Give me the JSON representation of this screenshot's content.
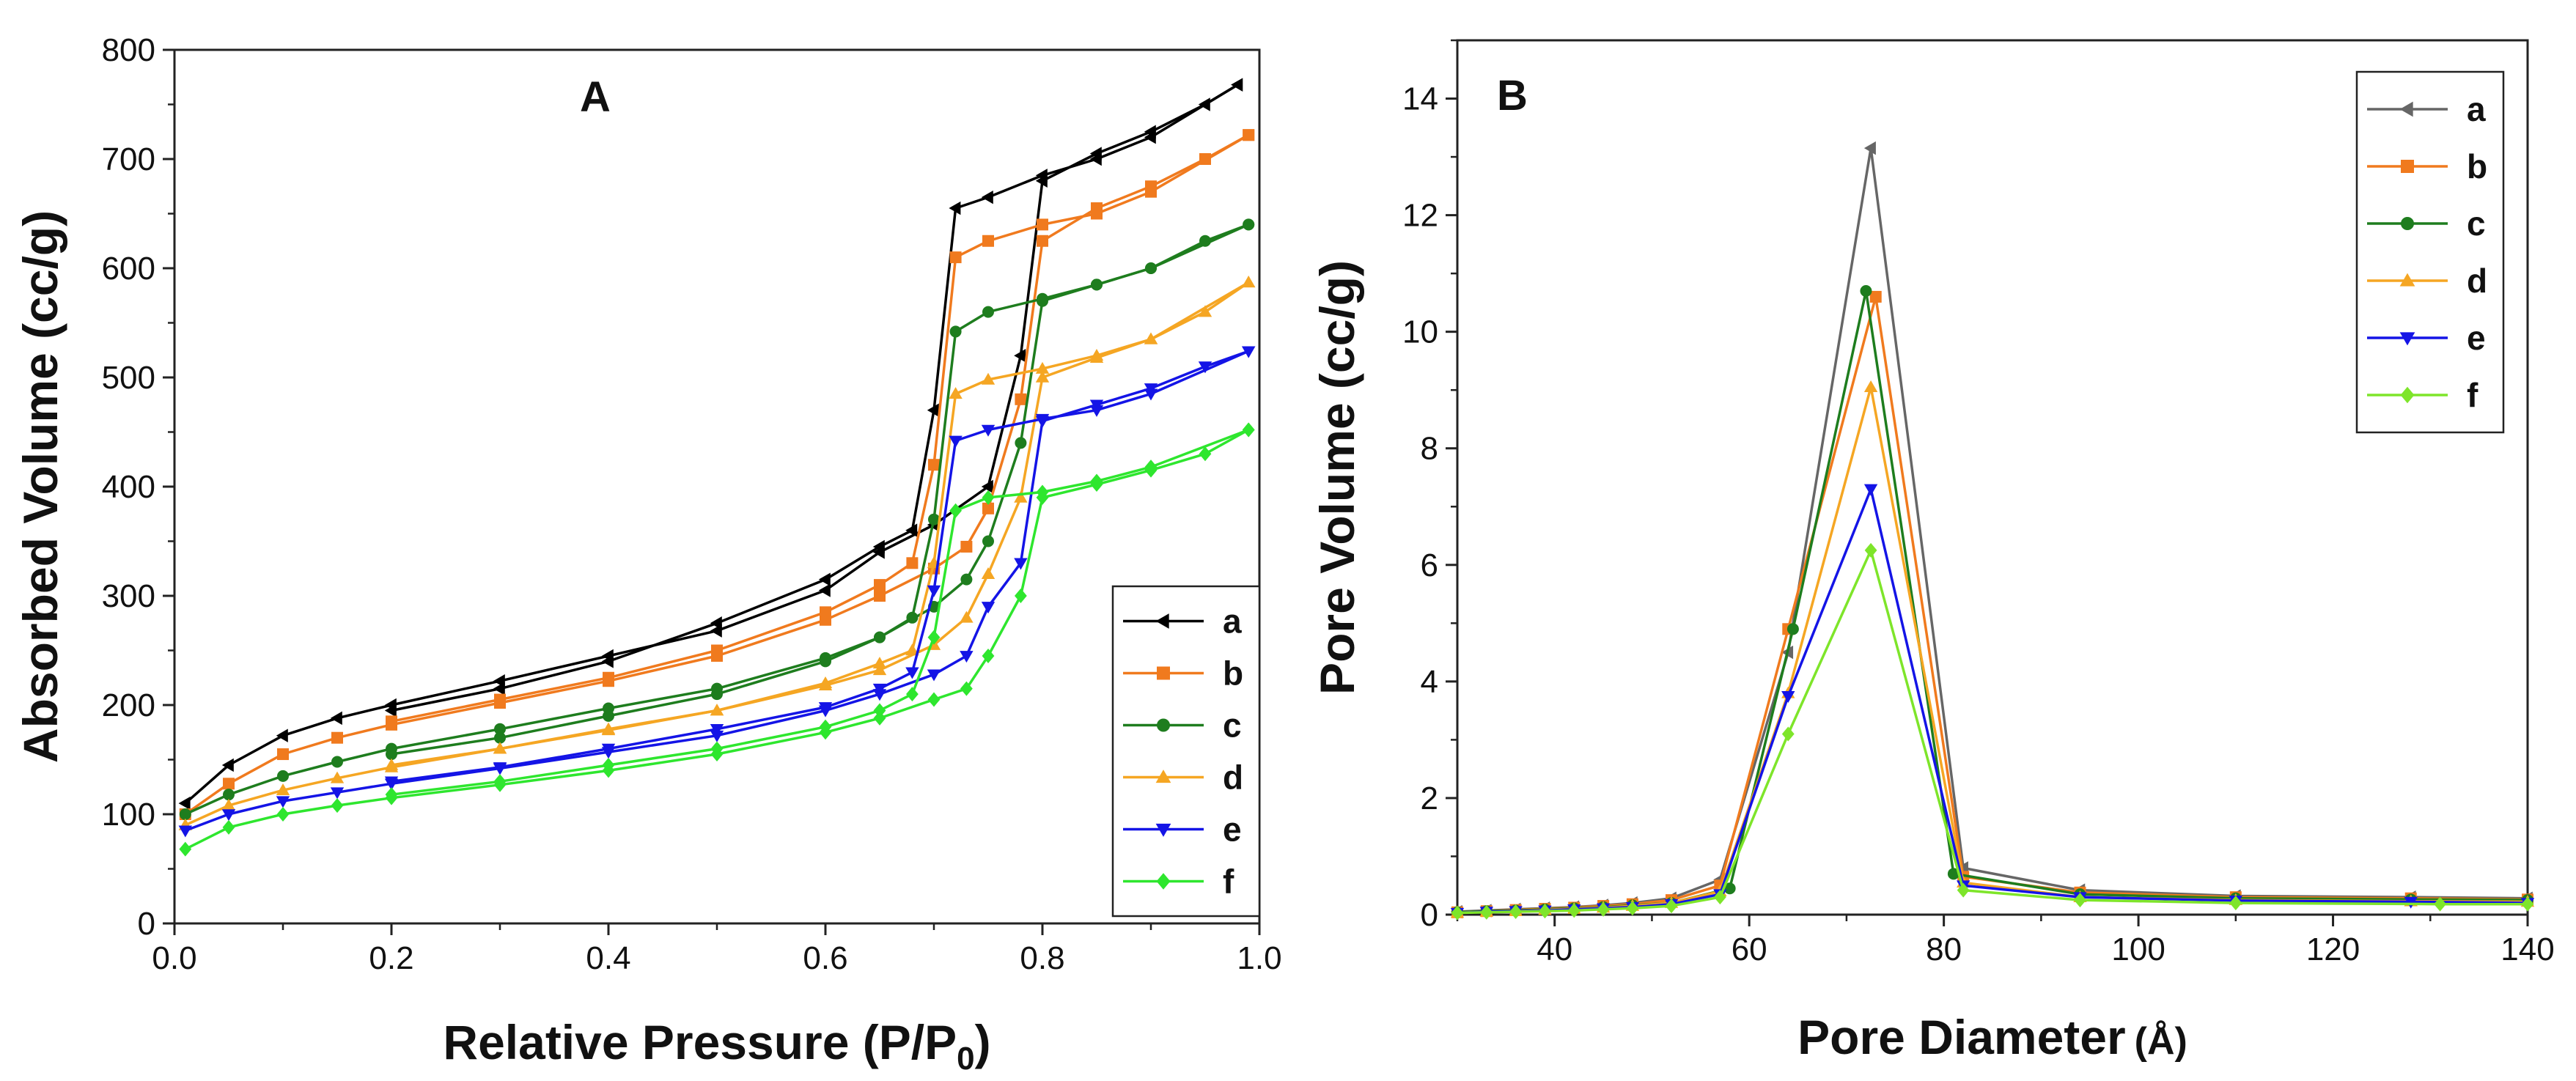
{
  "chart_data": [
    {
      "type": "line",
      "panel_label": "A",
      "xlabel": "Relative Pressure (P/P",
      "xlabel_sub": "0",
      "xlabel_end": ")",
      "ylabel": "Absorbed Volume (cc/g)",
      "xlim": [
        0.0,
        1.0
      ],
      "ylim": [
        0,
        800
      ],
      "xticks": [
        0.0,
        0.2,
        0.4,
        0.6,
        0.8,
        1.0
      ],
      "xtick_labels": [
        "0.0",
        "0.2",
        "0.4",
        "0.6",
        "0.8",
        "1.0"
      ],
      "yticks": [
        0,
        100,
        200,
        300,
        400,
        500,
        600,
        700,
        800
      ],
      "ytick_labels": [
        "0",
        "100",
        "200",
        "300",
        "400",
        "500",
        "600",
        "700",
        "800"
      ],
      "legend_position": "bottom-right",
      "series": [
        {
          "name": "a",
          "color": "#000000",
          "marker": "triangle-left",
          "adsorption": {
            "x": [
              0.01,
              0.05,
              0.1,
              0.15,
              0.2,
              0.3,
              0.4,
              0.5,
              0.6,
              0.65,
              0.7,
              0.75,
              0.78,
              0.8,
              0.85,
              0.9,
              0.95,
              0.98
            ],
            "y": [
              110,
              145,
              172,
              188,
              200,
              222,
              245,
              268,
              305,
              340,
              365,
              400,
              520,
              680,
              705,
              725,
              750,
              768
            ]
          },
          "desorption": {
            "x": [
              0.98,
              0.9,
              0.85,
              0.8,
              0.75,
              0.72,
              0.7,
              0.68,
              0.65,
              0.6,
              0.5,
              0.4,
              0.3,
              0.2
            ],
            "y": [
              768,
              720,
              700,
              685,
              665,
              655,
              470,
              360,
              345,
              315,
              275,
              240,
              215,
              195
            ]
          }
        },
        {
          "name": "b",
          "color": "#f07a1e",
          "marker": "square",
          "adsorption": {
            "x": [
              0.01,
              0.05,
              0.1,
              0.15,
              0.2,
              0.3,
              0.4,
              0.5,
              0.6,
              0.65,
              0.7,
              0.73,
              0.75,
              0.78,
              0.8,
              0.85,
              0.9,
              0.95,
              0.99
            ],
            "y": [
              100,
              128,
              155,
              170,
              182,
              202,
              222,
              245,
              278,
              300,
              325,
              345,
              380,
              480,
              625,
              655,
              675,
              700,
              722
            ]
          },
          "desorption": {
            "x": [
              0.99,
              0.9,
              0.85,
              0.8,
              0.75,
              0.72,
              0.7,
              0.68,
              0.65,
              0.6,
              0.5,
              0.4,
              0.3,
              0.2
            ],
            "y": [
              722,
              670,
              650,
              640,
              625,
              610,
              420,
              330,
              310,
              285,
              250,
              225,
              205,
              185
            ]
          }
        },
        {
          "name": "c",
          "color": "#1e7d1e",
          "marker": "circle",
          "adsorption": {
            "x": [
              0.01,
              0.05,
              0.1,
              0.15,
              0.2,
              0.3,
              0.4,
              0.5,
              0.6,
              0.65,
              0.7,
              0.73,
              0.75,
              0.78,
              0.8,
              0.85,
              0.9,
              0.95,
              0.99
            ],
            "y": [
              100,
              118,
              135,
              148,
              160,
              178,
              197,
              215,
              243,
              262,
              290,
              315,
              350,
              440,
              570,
              585,
              600,
              625,
              640
            ]
          },
          "desorption": {
            "x": [
              0.99,
              0.9,
              0.85,
              0.8,
              0.75,
              0.72,
              0.7,
              0.68,
              0.65,
              0.6,
              0.5,
              0.4,
              0.3,
              0.2
            ],
            "y": [
              640,
              600,
              585,
              572,
              560,
              542,
              370,
              280,
              262,
              240,
              210,
              190,
              170,
              155
            ]
          }
        },
        {
          "name": "d",
          "color": "#f5a623",
          "marker": "triangle-up",
          "adsorption": {
            "x": [
              0.01,
              0.05,
              0.1,
              0.15,
              0.2,
              0.3,
              0.4,
              0.5,
              0.6,
              0.65,
              0.7,
              0.73,
              0.75,
              0.78,
              0.8,
              0.85,
              0.9,
              0.95,
              0.99
            ],
            "y": [
              90,
              108,
              122,
              133,
              143,
              160,
              177,
              195,
              218,
              232,
              255,
              280,
              320,
              390,
              500,
              518,
              535,
              560,
              587
            ]
          },
          "desorption": {
            "x": [
              0.99,
              0.9,
              0.85,
              0.8,
              0.75,
              0.72,
              0.7,
              0.68,
              0.65,
              0.6,
              0.5,
              0.4,
              0.3,
              0.2
            ],
            "y": [
              587,
              535,
              520,
              508,
              498,
              485,
              330,
              250,
              238,
              220,
              195,
              178,
              160,
              145
            ]
          }
        },
        {
          "name": "e",
          "color": "#1414e6",
          "marker": "triangle-down",
          "adsorption": {
            "x": [
              0.01,
              0.05,
              0.1,
              0.15,
              0.2,
              0.3,
              0.4,
              0.5,
              0.6,
              0.65,
              0.7,
              0.73,
              0.75,
              0.78,
              0.8,
              0.85,
              0.9,
              0.95,
              0.99
            ],
            "y": [
              85,
              100,
              112,
              120,
              128,
              142,
              157,
              172,
              195,
              210,
              228,
              245,
              290,
              330,
              460,
              475,
              490,
              510,
              524
            ]
          },
          "desorption": {
            "x": [
              0.99,
              0.9,
              0.85,
              0.8,
              0.75,
              0.72,
              0.7,
              0.68,
              0.65,
              0.6,
              0.5,
              0.4,
              0.3,
              0.2
            ],
            "y": [
              524,
              485,
              470,
              462,
              452,
              442,
              305,
              230,
              215,
              198,
              178,
              160,
              143,
              130
            ]
          }
        },
        {
          "name": "f",
          "color": "#2ee62e",
          "marker": "diamond",
          "adsorption": {
            "x": [
              0.01,
              0.05,
              0.1,
              0.15,
              0.2,
              0.3,
              0.4,
              0.5,
              0.6,
              0.65,
              0.7,
              0.73,
              0.75,
              0.78,
              0.8,
              0.85,
              0.9,
              0.95,
              0.99
            ],
            "y": [
              68,
              88,
              100,
              108,
              115,
              127,
              140,
              155,
              175,
              188,
              205,
              215,
              245,
              300,
              390,
              402,
              415,
              430,
              452
            ]
          },
          "desorption": {
            "x": [
              0.99,
              0.9,
              0.85,
              0.8,
              0.75,
              0.72,
              0.7,
              0.68,
              0.65,
              0.6,
              0.5,
              0.4,
              0.3,
              0.2
            ],
            "y": [
              452,
              418,
              405,
              395,
              390,
              378,
              262,
              210,
              195,
              180,
              160,
              145,
              130,
              118
            ]
          }
        }
      ]
    },
    {
      "type": "line",
      "panel_label": "B",
      "xlabel": "Pore Diameter",
      "xlabel_unit": "(Å)",
      "ylabel": "Pore Volume (cc/g)",
      "xlim": [
        30,
        140
      ],
      "ylim": [
        0,
        15
      ],
      "xticks": [
        40,
        60,
        80,
        100,
        120,
        140
      ],
      "xtick_labels": [
        "40",
        "60",
        "80",
        "100",
        "120",
        "140"
      ],
      "yticks": [
        0,
        2,
        4,
        6,
        8,
        10,
        12,
        14
      ],
      "ytick_labels": [
        "0",
        "2",
        "4",
        "6",
        "8",
        "10",
        "12",
        "14"
      ],
      "legend_position": "top-right",
      "series": [
        {
          "name": "a",
          "color": "#666666",
          "marker": "triangle-left",
          "x": [
            30,
            33,
            36,
            39,
            42,
            45,
            48,
            52,
            57,
            64,
            72.5,
            82,
            94,
            110,
            128,
            140
          ],
          "y": [
            0.05,
            0.07,
            0.09,
            0.11,
            0.13,
            0.16,
            0.2,
            0.28,
            0.6,
            4.5,
            13.15,
            0.8,
            0.42,
            0.32,
            0.3,
            0.28
          ]
        },
        {
          "name": "b",
          "color": "#f07a1e",
          "marker": "square",
          "x": [
            30,
            33,
            36,
            39,
            42,
            45,
            48,
            52,
            57,
            64,
            73,
            82,
            94,
            110,
            128,
            140
          ],
          "y": [
            0.04,
            0.06,
            0.08,
            0.1,
            0.12,
            0.15,
            0.18,
            0.25,
            0.5,
            4.9,
            10.6,
            0.65,
            0.38,
            0.3,
            0.28,
            0.26
          ]
        },
        {
          "name": "c",
          "color": "#1e7d1e",
          "marker": "circle",
          "x": [
            30,
            33,
            36,
            39,
            42,
            45,
            48,
            52,
            58,
            64.5,
            72,
            81,
            94,
            110,
            128,
            140
          ],
          "y": [
            0.04,
            0.06,
            0.07,
            0.09,
            0.11,
            0.13,
            0.16,
            0.2,
            0.45,
            4.9,
            10.7,
            0.7,
            0.35,
            0.28,
            0.26,
            0.25
          ]
        },
        {
          "name": "d",
          "color": "#f5a623",
          "marker": "triangle-up",
          "x": [
            30,
            33,
            36,
            39,
            42,
            45,
            48,
            52,
            57,
            64,
            72.5,
            82,
            94,
            110,
            128,
            140
          ],
          "y": [
            0.03,
            0.05,
            0.06,
            0.08,
            0.1,
            0.12,
            0.15,
            0.2,
            0.4,
            3.8,
            9.05,
            0.55,
            0.3,
            0.25,
            0.23,
            0.22
          ]
        },
        {
          "name": "e",
          "color": "#1414e6",
          "marker": "triangle-down",
          "x": [
            30,
            33,
            36,
            39,
            42,
            45,
            48,
            52,
            57,
            64,
            72.5,
            82,
            94,
            110,
            128,
            140
          ],
          "y": [
            0.03,
            0.05,
            0.06,
            0.07,
            0.09,
            0.11,
            0.13,
            0.18,
            0.35,
            3.75,
            7.3,
            0.5,
            0.3,
            0.24,
            0.22,
            0.2
          ]
        },
        {
          "name": "f",
          "color": "#7ee52a",
          "marker": "diamond",
          "x": [
            30,
            33,
            36,
            39,
            42,
            45,
            48,
            52,
            57,
            64,
            72.5,
            82,
            94,
            110,
            131,
            140
          ],
          "y": [
            0.03,
            0.04,
            0.05,
            0.06,
            0.07,
            0.09,
            0.11,
            0.15,
            0.3,
            3.1,
            6.25,
            0.42,
            0.25,
            0.2,
            0.18,
            0.18
          ]
        }
      ]
    }
  ]
}
